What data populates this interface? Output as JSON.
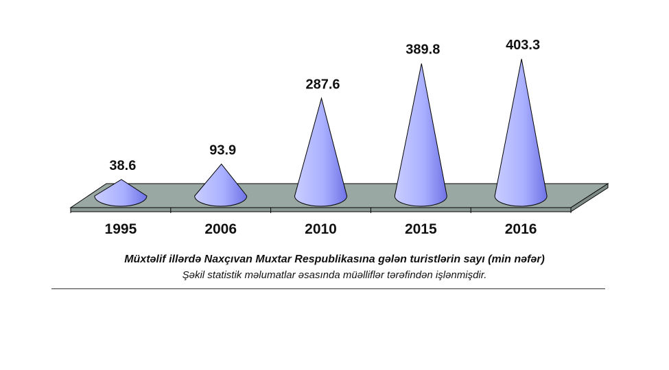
{
  "chart_data": {
    "type": "bar",
    "categories": [
      "1995",
      "2006",
      "2010",
      "2015",
      "2016"
    ],
    "values": [
      38.6,
      93.9,
      287.6,
      389.8,
      403.3
    ],
    "data_labels": [
      "38.6",
      "93.9",
      "287.6",
      "389.8",
      "403.3"
    ],
    "ylim": [
      0,
      403.3
    ],
    "grid": false,
    "legend": "none",
    "mark": "cone"
  },
  "caption": {
    "title": "Müxtəlif illərdə Naxçıvan Muxtar Respublikasına gələn turistlərin sayı (min nəfər)",
    "source": "Şəkil statistik məlumatlar əsasında müəlliflər tərəfindən işlənmişdir."
  },
  "colors": {
    "cone_light": "#c9cdff",
    "cone_dark": "#6f73e6",
    "floor": "#9aa8a4",
    "text": "#111111"
  }
}
